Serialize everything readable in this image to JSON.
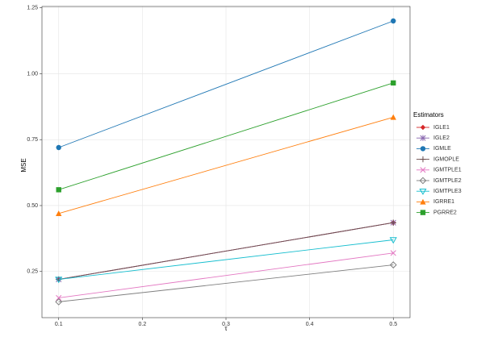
{
  "chart_data": {
    "type": "line",
    "x_label": "τ",
    "y_label": "MSE",
    "legend_title": "Estimators",
    "x": [
      0.1,
      0.5
    ],
    "series": [
      {
        "name": "IGLE1",
        "color": "#d62728",
        "marker": "diamond",
        "values": [
          0.22,
          0.435
        ]
      },
      {
        "name": "IGLE2",
        "color": "#8c6bb1",
        "marker": "asterisk",
        "values": [
          0.22,
          0.435
        ]
      },
      {
        "name": "IGMLE",
        "color": "#1f77b4",
        "marker": "circle",
        "values": [
          0.72,
          1.2
        ]
      },
      {
        "name": "IGMOPLE",
        "color": "#6b4c4c",
        "marker": "plus",
        "values": [
          0.22,
          0.435
        ]
      },
      {
        "name": "IGMTPLE1",
        "color": "#e377c2",
        "marker": "cross",
        "values": [
          0.15,
          0.32
        ]
      },
      {
        "name": "IGMTPLE2",
        "color": "#7f7f7f",
        "marker": "diamond-open",
        "values": [
          0.135,
          0.275
        ]
      },
      {
        "name": "IGMTPLE3",
        "color": "#17becf",
        "marker": "triangle-down-open",
        "values": [
          0.22,
          0.37
        ]
      },
      {
        "name": "IGRRE1",
        "color": "#ff7f0e",
        "marker": "triangle",
        "values": [
          0.47,
          0.835
        ]
      },
      {
        "name": "PGRRE2",
        "color": "#2ca02c",
        "marker": "square",
        "values": [
          0.56,
          0.965
        ]
      }
    ],
    "xlim": [
      0.08,
      0.52
    ],
    "xticks": [
      0.1,
      0.2,
      0.3,
      0.4,
      0.5
    ],
    "ylim": [
      0.075,
      1.255
    ],
    "yticks": [
      0.25,
      {
        "value": 0.5,
        "label": "0.50"
      },
      0.75,
      {
        "value": 1,
        "label": "1.00"
      },
      1.25
    ],
    "grid": true,
    "legend": "right"
  }
}
